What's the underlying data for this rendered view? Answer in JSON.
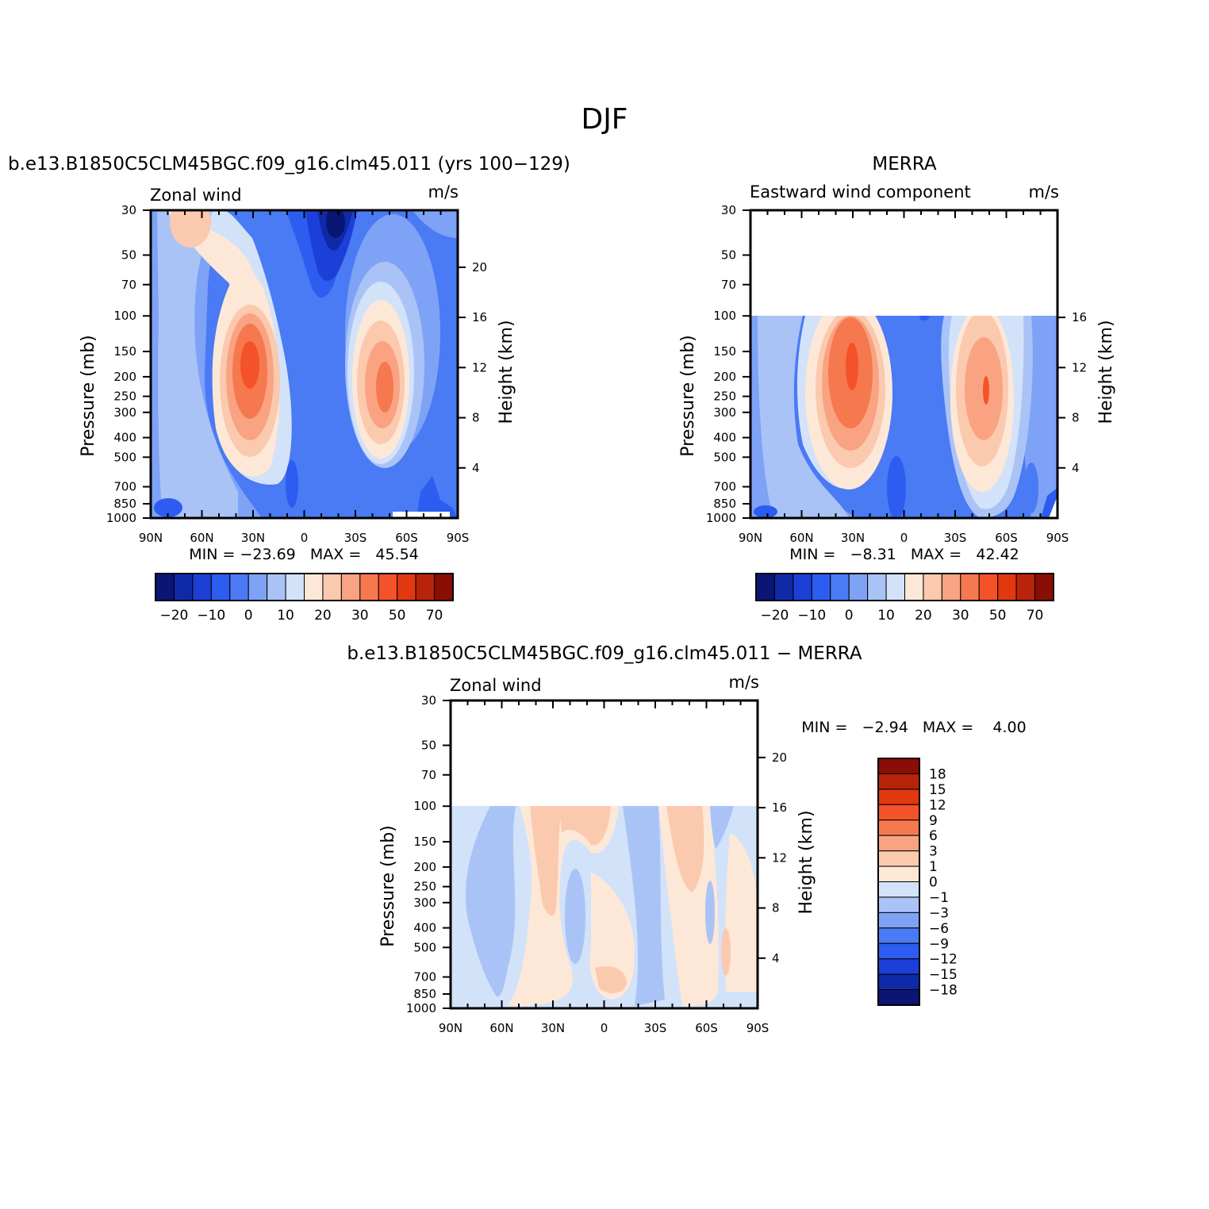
{
  "page_title": "DJF",
  "colors": {
    "full_scale": [
      "#0a1574",
      "#0f2aa6",
      "#1c3fd8",
      "#2d5cf0",
      "#4a7af4",
      "#7ea2f5",
      "#aac3f7",
      "#d2e2f9",
      "#fde8d8",
      "#fbc9ae",
      "#f9a383",
      "#f6784e",
      "#f45228",
      "#e1380f",
      "#b8240a",
      "#8a0e05"
    ],
    "diff_scale": [
      "#0a1574",
      "#0f2aa6",
      "#1c3fd8",
      "#2d5cf0",
      "#4a7af4",
      "#7ea2f5",
      "#aac3f7",
      "#d2e2f9",
      "#fde8d8",
      "#fbc9ae",
      "#f9a383",
      "#f6784e",
      "#f45228",
      "#e1380f",
      "#b8240a",
      "#8a0e05"
    ]
  },
  "chart_data": [
    {
      "id": "model",
      "type": "contour",
      "title": "b.e13.B1850C5CLM45BGC.f09_g16.clm45.011 (yrs 100−129)",
      "left_label": "Zonal wind",
      "right_label": "m/s",
      "ylabel": "Pressure (mb)",
      "ylabel_right": "Height (km)",
      "pressure_ticks": [
        30,
        50,
        70,
        100,
        150,
        200,
        250,
        300,
        400,
        500,
        700,
        850,
        1000
      ],
      "ylim_mb": [
        1000,
        30
      ],
      "height_ticks": [
        4,
        8,
        12,
        16,
        20
      ],
      "x_ticks": [
        "90N",
        "60N",
        "30N",
        "0",
        "30S",
        "60S",
        "90S"
      ],
      "xlim_deg_lat": [
        90,
        -90
      ],
      "data_top_mb": 30,
      "jets": [
        {
          "lat": 30,
          "p_mb": 200,
          "max": 45.54
        },
        {
          "lat": -48,
          "p_mb": 250,
          "max": 32
        }
      ],
      "minmax_text": "MIN = −23.69   MAX =   45.54",
      "min": -23.69,
      "max": 45.54,
      "colorbar": {
        "orientation": "horizontal",
        "tick_labels": [
          "−20",
          "−10",
          "0",
          "10",
          "20",
          "30",
          "50",
          "70"
        ]
      }
    },
    {
      "id": "obs",
      "type": "contour",
      "title": "MERRA",
      "left_label": "Eastward wind component",
      "right_label": "m/s",
      "ylabel": "Pressure (mb)",
      "ylabel_right": "Height (km)",
      "pressure_ticks": [
        30,
        50,
        70,
        100,
        150,
        200,
        250,
        300,
        400,
        500,
        700,
        850,
        1000
      ],
      "ylim_mb": [
        1000,
        30
      ],
      "height_ticks": [
        4,
        8,
        12,
        16
      ],
      "x_ticks": [
        "90N",
        "60N",
        "30N",
        "0",
        "30S",
        "60S",
        "90S"
      ],
      "xlim_deg_lat": [
        90,
        -90
      ],
      "data_top_mb": 100,
      "jets": [
        {
          "lat": 30,
          "p_mb": 200,
          "max": 42.42
        },
        {
          "lat": -48,
          "p_mb": 250,
          "max": 30
        }
      ],
      "minmax_text": "MIN =   −8.31   MAX =   42.42",
      "min": -8.31,
      "max": 42.42,
      "colorbar": {
        "orientation": "horizontal",
        "tick_labels": [
          "−20",
          "−10",
          "0",
          "10",
          "20",
          "30",
          "50",
          "70"
        ]
      }
    },
    {
      "id": "diff",
      "type": "contour",
      "title": "b.e13.B1850C5CLM45BGC.f09_g16.clm45.011 − MERRA",
      "left_label": "Zonal wind",
      "right_label": "m/s",
      "ylabel": "Pressure (mb)",
      "ylabel_right": "Height (km)",
      "pressure_ticks": [
        30,
        50,
        70,
        100,
        150,
        200,
        250,
        300,
        400,
        500,
        700,
        850,
        1000
      ],
      "ylim_mb": [
        1000,
        30
      ],
      "height_ticks": [
        4,
        8,
        12,
        16,
        20
      ],
      "x_ticks": [
        "90N",
        "60N",
        "30N",
        "0",
        "30S",
        "60S",
        "90S"
      ],
      "xlim_deg_lat": [
        90,
        -90
      ],
      "data_top_mb": 100,
      "minmax_text": "MIN =   −2.94   MAX =    4.00",
      "min": -2.94,
      "max": 4.0,
      "colorbar": {
        "orientation": "vertical",
        "tick_labels": [
          "18",
          "15",
          "12",
          "9",
          "6",
          "3",
          "1",
          "0",
          "−1",
          "−3",
          "−6",
          "−9",
          "−12",
          "−15",
          "−18"
        ]
      }
    }
  ]
}
